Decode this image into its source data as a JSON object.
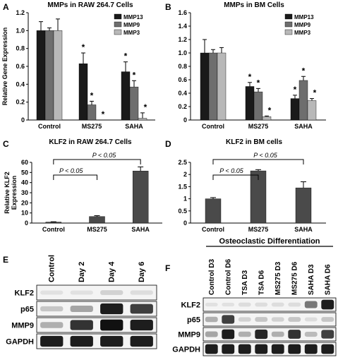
{
  "panel_labels": {
    "a": "A",
    "b": "B",
    "c": "C",
    "d": "D",
    "e": "E",
    "f": "F"
  },
  "colors": {
    "mmp13": "#1a1a1a",
    "mmp9": "#6e6e6e",
    "mmp3": "#b8b8b8",
    "klf2_bar": "#4a4a4a",
    "blot_bg": "#f4f4f4",
    "band": "#111111"
  },
  "chart_data": [
    {
      "id": "A",
      "type": "bar",
      "title": "MMPs in RAW 264.7 Cells",
      "ylabel": "Relative Gene Expression",
      "xlabel": "",
      "categories": [
        "Control",
        "MS275",
        "SAHA"
      ],
      "ylim": [
        0,
        1.2
      ],
      "yticks": [
        "0",
        "0.2",
        "0.4",
        "0.6",
        "0.8",
        "1.0",
        "1.2"
      ],
      "legend_position": "top-right",
      "series": [
        {
          "name": "MMP13",
          "values": [
            1.0,
            0.63,
            0.54
          ],
          "errors": [
            0.1,
            0.12,
            0.11
          ]
        },
        {
          "name": "MMP9",
          "values": [
            1.0,
            0.17,
            0.37
          ],
          "errors": [
            0.03,
            0.04,
            0.07
          ]
        },
        {
          "name": "MMP3",
          "values": [
            1.0,
            0.0,
            0.02
          ],
          "errors": [
            0.13,
            0.0,
            0.06
          ]
        }
      ],
      "significance": [
        [
          null,
          "*",
          "*"
        ],
        [
          null,
          "*",
          "*"
        ],
        [
          null,
          "*",
          "*"
        ]
      ]
    },
    {
      "id": "B",
      "type": "bar",
      "title": "MMPs in BM Cells",
      "ylabel": "",
      "xlabel": "",
      "categories": [
        "Control",
        "MS275",
        "SAHA"
      ],
      "ylim": [
        0,
        1.6
      ],
      "yticks": [
        "0",
        "0.2",
        "0.4",
        "0.6",
        "0.8",
        "1.0",
        "1.2",
        "1.4",
        "1.6"
      ],
      "legend_position": "top-right",
      "series": [
        {
          "name": "MMP13",
          "values": [
            1.0,
            0.5,
            0.32
          ],
          "errors": [
            0.2,
            0.06,
            0.05
          ]
        },
        {
          "name": "MMP9",
          "values": [
            1.0,
            0.42,
            0.59
          ],
          "errors": [
            0.05,
            0.05,
            0.06
          ]
        },
        {
          "name": "MMP3",
          "values": [
            1.0,
            0.05,
            0.29
          ],
          "errors": [
            0.08,
            0.01,
            0.03
          ]
        }
      ],
      "significance": [
        [
          null,
          "*",
          "*"
        ],
        [
          null,
          "*",
          "*"
        ],
        [
          null,
          "*",
          "*"
        ]
      ]
    },
    {
      "id": "C",
      "type": "bar",
      "title": "KLF2 in RAW 264.7 Cells",
      "ylabel": "Relative KLF2 Expression",
      "xlabel": "",
      "categories": [
        "Control",
        "MS275",
        "SAHA"
      ],
      "ylim": [
        0,
        60
      ],
      "yticks": [
        "0",
        "10",
        "20",
        "30",
        "40",
        "50",
        "60"
      ],
      "values": [
        1.0,
        6.5,
        51.5
      ],
      "errors": [
        0.3,
        0.8,
        4.0
      ],
      "brackets": [
        {
          "from": 0,
          "to": 1,
          "label": "P < 0.05"
        },
        {
          "from": 0,
          "to": 2,
          "label": "P < 0.05"
        }
      ]
    },
    {
      "id": "D",
      "type": "bar",
      "title": "KLF2 in BM cells",
      "ylabel": "",
      "xlabel": "",
      "categories": [
        "Control",
        "MS275",
        "SAHA"
      ],
      "ylim": [
        0,
        2.5
      ],
      "yticks": [
        "0",
        "0.5",
        "1",
        "1.5",
        "2",
        "2.5"
      ],
      "values": [
        1.0,
        2.15,
        1.45
      ],
      "errors": [
        0.05,
        0.05,
        0.25
      ],
      "brackets": [
        {
          "from": 0,
          "to": 1,
          "label": "P < 0.05"
        },
        {
          "from": 0,
          "to": 2,
          "label": "P < 0.05"
        }
      ]
    }
  ],
  "blot_e": {
    "lanes": [
      "Control",
      "Day 2",
      "Day 4",
      "Day 6"
    ],
    "rows": [
      {
        "label": "KLF2",
        "bands": [
          0.05,
          0.05,
          0.15,
          0.1
        ]
      },
      {
        "label": "p65",
        "bands": [
          0.2,
          0.35,
          0.95,
          0.8
        ]
      },
      {
        "label": "MMP9",
        "bands": [
          0.3,
          0.85,
          1.0,
          0.95
        ]
      },
      {
        "label": "GAPDH",
        "bands": [
          0.95,
          0.95,
          0.95,
          0.95
        ]
      }
    ]
  },
  "blot_f": {
    "header": "Osteoclastic Differentiation",
    "lanes": [
      "Control D3",
      "Control D6",
      "TSA D3",
      "TSA D6",
      "MS275 D3",
      "MS275 D6",
      "SAHA D3",
      "SAHA D6"
    ],
    "rows": [
      {
        "label": "KLF2",
        "bands": [
          0.05,
          0.05,
          0.1,
          0.1,
          0.1,
          0.1,
          0.55,
          0.95
        ]
      },
      {
        "label": "p65",
        "bands": [
          0.3,
          0.8,
          0.15,
          0.2,
          0.15,
          0.2,
          0.1,
          0.2
        ]
      },
      {
        "label": "MMP9",
        "bands": [
          0.35,
          0.95,
          0.3,
          0.9,
          0.3,
          0.85,
          0.25,
          0.8
        ]
      },
      {
        "label": "GAPDH",
        "bands": [
          0.95,
          0.95,
          0.95,
          0.95,
          0.95,
          0.95,
          0.95,
          0.95
        ]
      }
    ]
  }
}
